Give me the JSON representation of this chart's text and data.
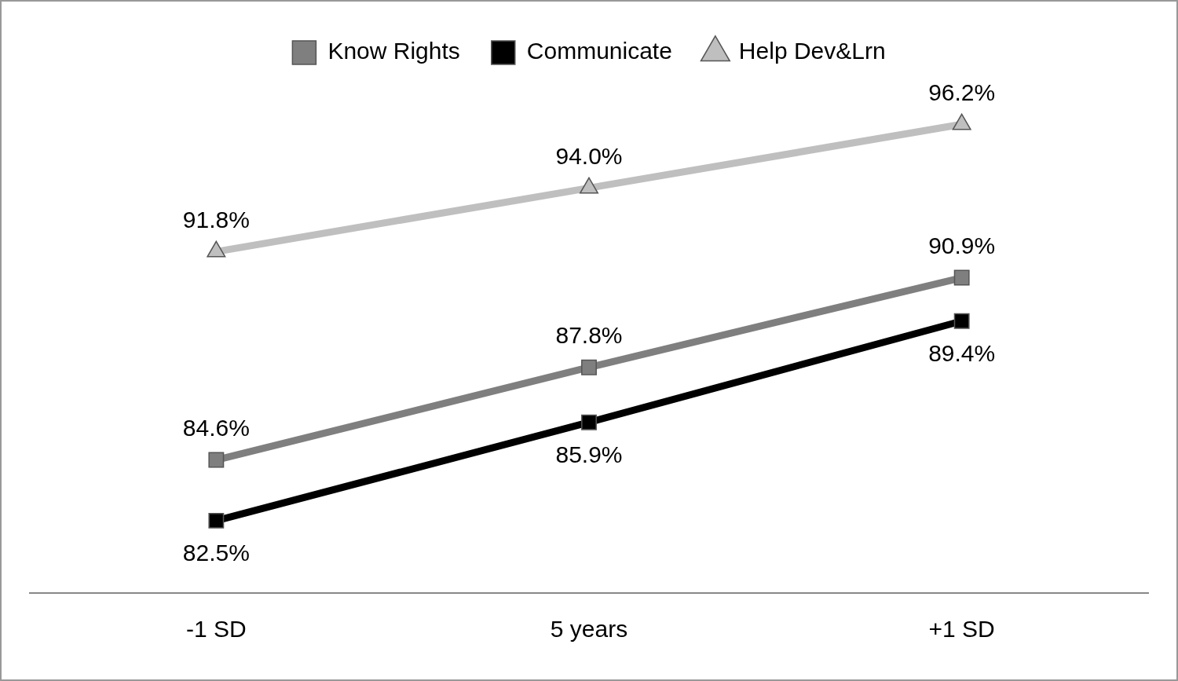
{
  "chart_data": {
    "type": "line",
    "categories": [
      "-1 SD",
      "5 years",
      "+1 SD"
    ],
    "series": [
      {
        "name": "Know Rights",
        "color": "#7f7f7f",
        "marker": "square",
        "values": [
          84.6,
          87.8,
          90.9
        ],
        "value_labels": [
          "84.6%",
          "87.8%",
          "90.9%"
        ]
      },
      {
        "name": "Communicate",
        "color": "#000000",
        "marker": "square",
        "values": [
          82.5,
          85.9,
          89.4
        ],
        "value_labels": [
          "82.5%",
          "85.9%",
          "89.4%"
        ]
      },
      {
        "name": "Help Dev&Lrn",
        "color": "#bfbfbf",
        "marker": "triangle",
        "values": [
          91.8,
          94.0,
          96.2
        ],
        "value_labels": [
          "91.8%",
          "94.0%",
          "96.2%"
        ]
      }
    ],
    "grid": false,
    "legend": "top"
  }
}
